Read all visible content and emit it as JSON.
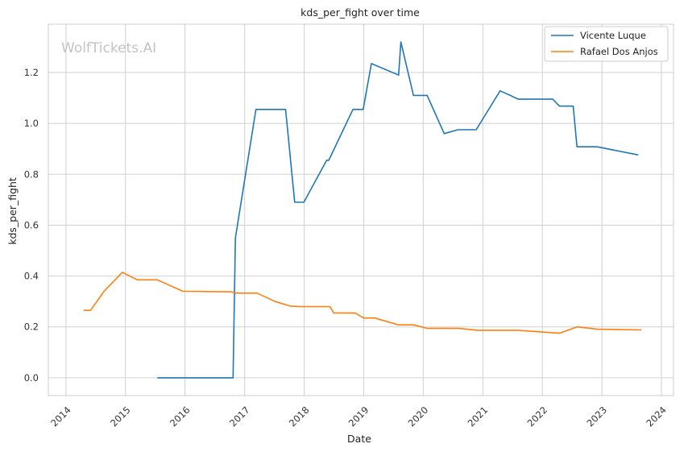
{
  "watermark": "WolfTickets.AI",
  "colors": {
    "series_1": "#1f77b4",
    "series_2": "#ff7f0e",
    "grid": "#d0d0d0",
    "frame": "#cccccc"
  },
  "chart_data": {
    "type": "line",
    "title": "kds_per_fight over time",
    "xlabel": "Date",
    "ylabel": "kds_per_fight",
    "x_type": "date",
    "xlim": [
      "2013-09-15",
      "2024-03-15"
    ],
    "ylim": [
      -0.07,
      1.39
    ],
    "grid": true,
    "legend_position": "top-right",
    "x_ticks": [
      "2014",
      "2015",
      "2016",
      "2017",
      "2018",
      "2019",
      "2020",
      "2021",
      "2022",
      "2023",
      "2024"
    ],
    "y_ticks": [
      "0.0",
      "0.2",
      "0.4",
      "0.6",
      "0.8",
      "1.0",
      "1.2"
    ],
    "y_tick_values": [
      0.0,
      0.2,
      0.4,
      0.6,
      0.8,
      1.0,
      1.2
    ],
    "series": [
      {
        "name": "Vicente Luque",
        "color": "#1f77b4",
        "points": [
          [
            "2015-07-15",
            0.0
          ],
          [
            "2016-10-22",
            0.0
          ],
          [
            "2016-11-05",
            0.55
          ],
          [
            "2017-03-11",
            1.055
          ],
          [
            "2017-09-09",
            1.055
          ],
          [
            "2017-11-04",
            0.69
          ],
          [
            "2017-12-30",
            0.69
          ],
          [
            "2018-05-19",
            0.855
          ],
          [
            "2018-06-01",
            0.855
          ],
          [
            "2018-10-27",
            1.055
          ],
          [
            "2018-12-29",
            1.055
          ],
          [
            "2019-02-17",
            1.235
          ],
          [
            "2019-08-03",
            1.19
          ],
          [
            "2019-08-17",
            1.32
          ],
          [
            "2019-11-02",
            1.11
          ],
          [
            "2020-01-25",
            1.11
          ],
          [
            "2020-05-09",
            0.96
          ],
          [
            "2020-08-01",
            0.975
          ],
          [
            "2020-11-21",
            0.975
          ],
          [
            "2021-04-17",
            1.128
          ],
          [
            "2021-08-07",
            1.095
          ],
          [
            "2022-03-05",
            1.095
          ],
          [
            "2022-04-16",
            1.068
          ],
          [
            "2022-07-09",
            1.068
          ],
          [
            "2022-08-01",
            0.908
          ],
          [
            "2022-12-03",
            0.908
          ],
          [
            "2023-08-12",
            0.876
          ]
        ]
      },
      {
        "name": "Rafael Dos Anjos",
        "color": "#ff7f0e",
        "points": [
          [
            "2014-04-19",
            0.265
          ],
          [
            "2014-06-01",
            0.265
          ],
          [
            "2014-08-23",
            0.34
          ],
          [
            "2014-12-13",
            0.415
          ],
          [
            "2015-03-14",
            0.385
          ],
          [
            "2015-07-15",
            0.385
          ],
          [
            "2015-12-19",
            0.34
          ],
          [
            "2016-10-15",
            0.338
          ],
          [
            "2016-11-05",
            0.333
          ],
          [
            "2017-03-18",
            0.333
          ],
          [
            "2017-07-07",
            0.3
          ],
          [
            "2017-10-07",
            0.282
          ],
          [
            "2017-12-16",
            0.28
          ],
          [
            "2018-06-09",
            0.28
          ],
          [
            "2018-07-01",
            0.255
          ],
          [
            "2018-11-10",
            0.255
          ],
          [
            "2019-01-01",
            0.235
          ],
          [
            "2019-03-10",
            0.235
          ],
          [
            "2019-08-01",
            0.208
          ],
          [
            "2019-11-02",
            0.208
          ],
          [
            "2020-01-26",
            0.194
          ],
          [
            "2020-08-08",
            0.194
          ],
          [
            "2020-12-01",
            0.187
          ],
          [
            "2021-08-01",
            0.187
          ],
          [
            "2022-04-16",
            0.175
          ],
          [
            "2022-08-01",
            0.2
          ],
          [
            "2022-12-03",
            0.191
          ],
          [
            "2023-09-01",
            0.188
          ]
        ]
      }
    ]
  }
}
